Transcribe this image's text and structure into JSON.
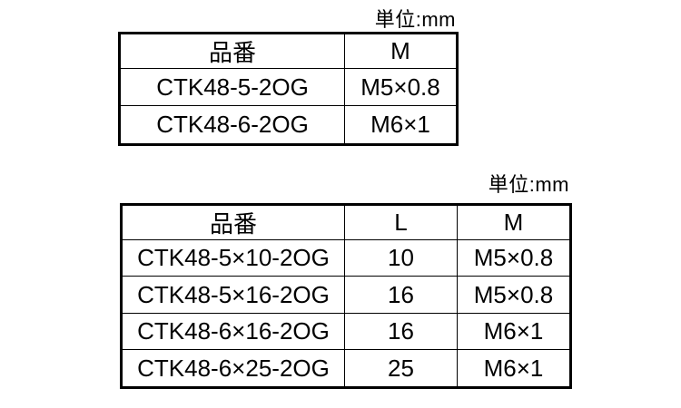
{
  "colors": {
    "background": "#ffffff",
    "text": "#000000",
    "border": "#000000"
  },
  "tables": [
    {
      "name": "thread-size-table",
      "unit_label": "単位:mm",
      "headers": [
        "品番",
        "M"
      ],
      "rows": [
        [
          "CTK48-5-2OG",
          "M5×0.8"
        ],
        [
          "CTK48-6-2OG",
          "M6×1"
        ]
      ]
    },
    {
      "name": "length-and-thread-size-table",
      "unit_label": "単位:mm",
      "headers": [
        "品番",
        "L",
        "M"
      ],
      "rows": [
        [
          "CTK48-5×10-2OG",
          "10",
          "M5×0.8"
        ],
        [
          "CTK48-5×16-2OG",
          "16",
          "M5×0.8"
        ],
        [
          "CTK48-6×16-2OG",
          "16",
          "M6×1"
        ],
        [
          "CTK48-6×25-2OG",
          "25",
          "M6×1"
        ]
      ]
    }
  ]
}
